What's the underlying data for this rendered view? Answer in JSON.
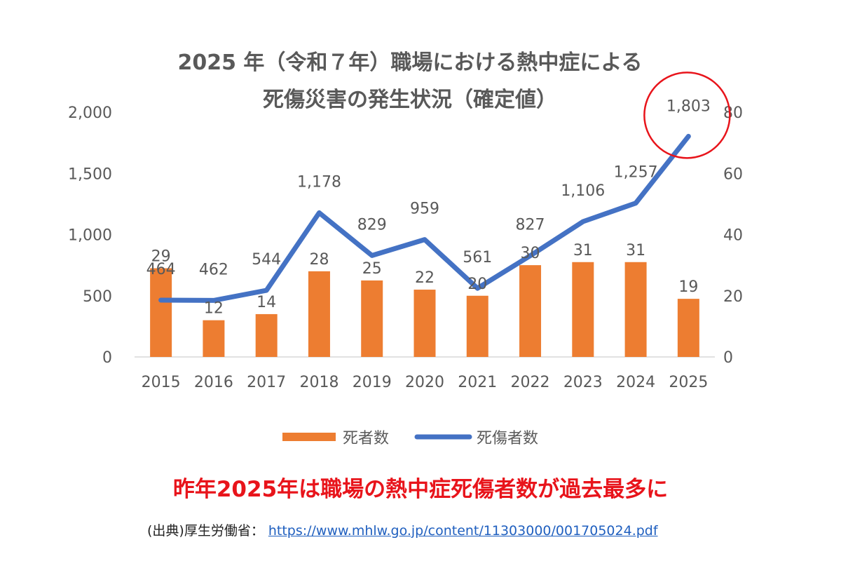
{
  "chart_data": {
    "type": "bar",
    "title_line1": "2025 年（令和７年）職場における熱中症による",
    "title_line2": "死傷災害の発生状況（確定値）",
    "categories": [
      "2015",
      "2016",
      "2017",
      "2018",
      "2019",
      "2020",
      "2021",
      "2022",
      "2023",
      "2024",
      "2025"
    ],
    "series": [
      {
        "name": "死者数",
        "type": "bar",
        "axis": "right",
        "values": [
          29,
          12,
          14,
          28,
          25,
          22,
          20,
          30,
          31,
          31,
          19
        ],
        "color": "#ed7d31"
      },
      {
        "name": "死傷者数",
        "type": "line",
        "axis": "left",
        "values": [
          464,
          462,
          544,
          1178,
          829,
          959,
          561,
          827,
          1106,
          1257,
          1803
        ],
        "color": "#4472c4"
      }
    ],
    "y_left": {
      "min": 0,
      "max": 2000,
      "ticks": [
        "0",
        "500",
        "1,000",
        "1,500",
        "2,000"
      ]
    },
    "y_right": {
      "min": 0,
      "max": 80,
      "ticks": [
        "0",
        "20",
        "40",
        "60",
        "80"
      ]
    },
    "line_labels": [
      "464",
      "462",
      "544",
      "1,178",
      "829",
      "959",
      "561",
      "827",
      "1,106",
      "1,257",
      "1,803"
    ],
    "highlight_color": "#e8141b",
    "legend_position": "bottom",
    "grid": false
  },
  "headline": "昨年2025年は職場の熱中症死傷者数が過去最多に",
  "source": {
    "label": "(出典)厚生労働省：",
    "url_text": "https://www.mhlw.go.jp/content/11303000/001705024.pdf"
  }
}
